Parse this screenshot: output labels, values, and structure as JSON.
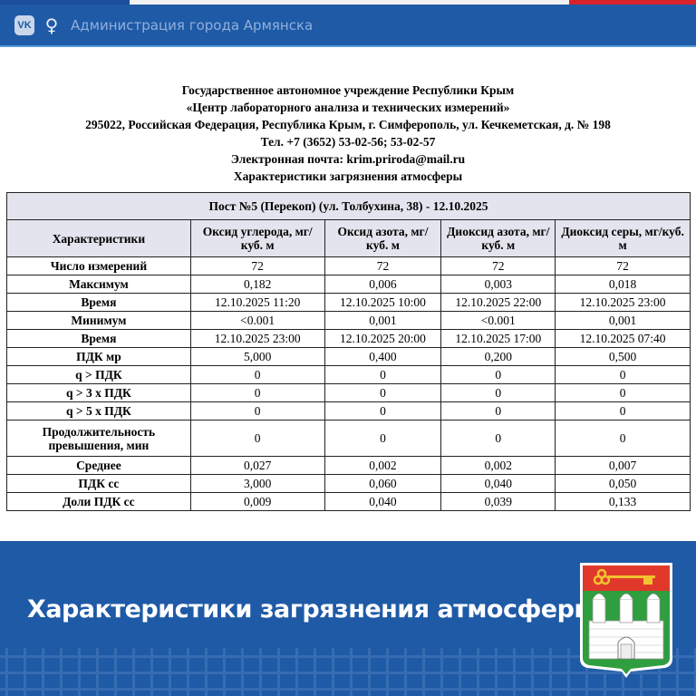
{
  "topbar": {
    "vk_icon": "VK",
    "ok_icon": "odnoklassniki",
    "site_name": "Администрация города Армянска"
  },
  "header": {
    "lines": [
      "Государственное автономное учреждение Республики Крым",
      "«Центр лабораторного анализа и технических измерений»",
      "295022, Российская Федерация, Республика Крым, г. Симферополь, ул. Кечкеметская, д. № 198",
      "Тел. +7 (3652) 53-02-56; 53-02-57",
      "Электронная почта: krim.priroda@mail.ru",
      "Характеристики загрязнения атмосферы"
    ]
  },
  "table": {
    "title": "Пост №5 (Перекоп) (ул. Толбухина, 38) - 12.10.2025",
    "columns": [
      "Характеристики",
      "Оксид углерода, мг/куб. м",
      "Оксид азота, мг/куб. м",
      "Диоксид азота, мг/куб. м",
      "Диоксид серы, мг/куб. м"
    ],
    "rows": [
      [
        "Число измерений",
        "72",
        "72",
        "72",
        "72"
      ],
      [
        "Максимум",
        "0,182",
        "0,006",
        "0,003",
        "0,018"
      ],
      [
        "Время",
        "12.10.2025 11:20",
        "12.10.2025 10:00",
        "12.10.2025 22:00",
        "12.10.2025 23:00"
      ],
      [
        "Минимум",
        "<0.001",
        "0,001",
        "<0.001",
        "0,001"
      ],
      [
        "Время",
        "12.10.2025 23:00",
        "12.10.2025 20:00",
        "12.10.2025 17:00",
        "12.10.2025 07:40"
      ],
      [
        "ПДК мр",
        "5,000",
        "0,400",
        "0,200",
        "0,500"
      ],
      [
        "q > ПДК",
        "0",
        "0",
        "0",
        "0"
      ],
      [
        "q > 3 x ПДК",
        "0",
        "0",
        "0",
        "0"
      ],
      [
        "q > 5 x ПДК",
        "0",
        "0",
        "0",
        "0"
      ],
      [
        "Продолжительность превышения, мин",
        "0",
        "0",
        "0",
        "0"
      ],
      [
        "Среднее",
        "0,027",
        "0,002",
        "0,002",
        "0,007"
      ],
      [
        "ПДК сс",
        "3,000",
        "0,060",
        "0,040",
        "0,050"
      ],
      [
        "Доли ПДК сс",
        "0,009",
        "0,040",
        "0,039",
        "0,133"
      ]
    ]
  },
  "banner": {
    "title": "Характеристики загрязнения атмосферы",
    "emblem": "coat-of-arms-armyansk"
  },
  "colors": {
    "brand_blue": "#1f5aa6",
    "header_bg": "#e4e4ee",
    "flag_red": "#d8232a",
    "crest_red": "#e0392b",
    "crest_green": "#2e9e3e"
  }
}
